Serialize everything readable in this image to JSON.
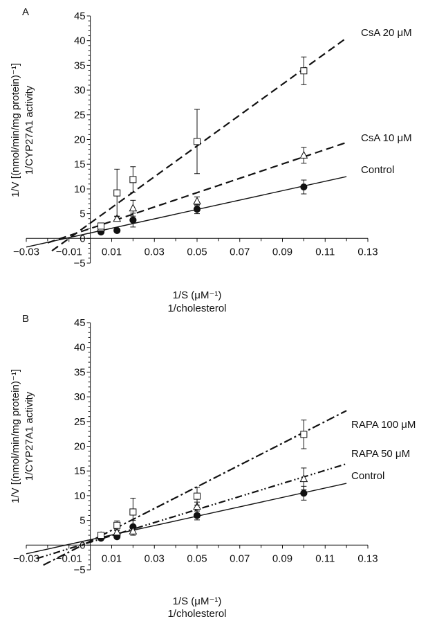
{
  "chart_data": [
    {
      "type": "line",
      "panel": "A",
      "xlabel": "1/S (μM⁻¹)",
      "xlabel2": "1/cholesterol",
      "ylabel": "1/V [(nmol/min/mg protein)⁻¹]",
      "ylabel2": "1/CYP27A1 activity",
      "xlim": [
        -0.03,
        0.13
      ],
      "ylim": [
        -5,
        45
      ],
      "xticks": [
        -0.03,
        -0.01,
        0.01,
        0.03,
        0.05,
        0.07,
        0.09,
        0.11,
        0.13
      ],
      "xtick_labels": [
        "−0.03",
        "−0.01",
        "0.01",
        "0.03",
        "0.05",
        "0.07",
        "0.09",
        "0.11",
        "0.13"
      ],
      "yticks": [
        -5,
        0,
        5,
        10,
        15,
        20,
        25,
        30,
        35,
        40,
        45
      ],
      "ytick_labels": [
        "−5",
        "0",
        "5",
        "10",
        "15",
        "20",
        "25",
        "30",
        "35",
        "40",
        "45"
      ],
      "grid": false,
      "series": [
        {
          "name": "Control",
          "color": "#111111",
          "line_style": "solid",
          "marker": "filled-circle",
          "x": [
            0.005,
            0.0125,
            0.02,
            0.05,
            0.1
          ],
          "y": [
            1.3,
            1.6,
            3.7,
            5.9,
            10.4
          ],
          "err": [
            0.3,
            0.3,
            1.4,
            0.9,
            1.4
          ],
          "fit": {
            "slope": 95,
            "intercept": 1.1,
            "x_range": [
              -0.03,
              0.12
            ]
          }
        },
        {
          "name": "CsA 10 μM",
          "color": "#111111",
          "line_style": "dashed",
          "marker": "open-triangle",
          "x": [
            0.005,
            0.0125,
            0.02,
            0.05,
            0.1
          ],
          "y": [
            2.1,
            4.0,
            6.1,
            7.5,
            16.8
          ],
          "err": [
            0.3,
            0.5,
            1.6,
            0.9,
            1.6
          ],
          "fit": {
            "slope": 145,
            "intercept": 2.0,
            "x_range": [
              -0.02,
              0.12
            ]
          }
        },
        {
          "name": "CsA 20 μM",
          "color": "#111111",
          "line_style": "dashed",
          "marker": "open-square",
          "x": [
            0.005,
            0.0125,
            0.02,
            0.05,
            0.1
          ],
          "y": [
            2.5,
            9.2,
            11.9,
            19.6,
            33.9
          ],
          "err": [
            0.4,
            4.8,
            2.6,
            6.5,
            2.8
          ],
          "fit": {
            "slope": 312,
            "intercept": 3.1,
            "x_range": [
              -0.018,
              0.12
            ]
          }
        }
      ]
    },
    {
      "type": "line",
      "panel": "B",
      "xlabel": "1/S (μM⁻¹)",
      "xlabel2": "1/cholesterol",
      "ylabel": "1/V [(nmol/min/mg protein)⁻¹]",
      "ylabel2": "1/CYP27A1 activity",
      "xlim": [
        -0.03,
        0.13
      ],
      "ylim": [
        -5,
        45
      ],
      "xticks": [
        -0.03,
        -0.01,
        0.01,
        0.03,
        0.05,
        0.07,
        0.09,
        0.11,
        0.13
      ],
      "xtick_labels": [
        "−0.03",
        "−0.01",
        "0.01",
        "0.03",
        "0.05",
        "0.07",
        "0.09",
        "0.11",
        "0.13"
      ],
      "yticks": [
        -5,
        0,
        5,
        10,
        15,
        20,
        25,
        30,
        35,
        40,
        45
      ],
      "ytick_labels": [
        "−5",
        "0",
        "5",
        "10",
        "15",
        "20",
        "25",
        "30",
        "35",
        "40",
        "45"
      ],
      "grid": false,
      "series": [
        {
          "name": "Control",
          "color": "#111111",
          "line_style": "solid",
          "marker": "filled-circle",
          "x": [
            0.005,
            0.0125,
            0.02,
            0.05,
            0.1
          ],
          "y": [
            1.4,
            1.7,
            3.7,
            6.0,
            10.5
          ],
          "err": [
            0.3,
            0.3,
            1.3,
            0.9,
            1.4
          ],
          "fit": {
            "slope": 95,
            "intercept": 1.1,
            "x_range": [
              -0.03,
              0.12
            ]
          }
        },
        {
          "name": "RAPA 50 μM",
          "color": "#111111",
          "line_style": "dash-dot-dot",
          "marker": "open-triangle",
          "x": [
            0.005,
            0.0125,
            0.02,
            0.05,
            0.1
          ],
          "y": [
            1.9,
            2.6,
            2.8,
            7.8,
            13.4
          ],
          "err": [
            0.3,
            0.3,
            0.8,
            0.9,
            2.2
          ],
          "fit": {
            "slope": 132,
            "intercept": 0.6,
            "x_range": [
              -0.025,
              0.12
            ]
          }
        },
        {
          "name": "RAPA 100 μM",
          "color": "#111111",
          "line_style": "dash-dot",
          "marker": "open-square",
          "x": [
            0.005,
            0.0125,
            0.02,
            0.05,
            0.1
          ],
          "y": [
            2.0,
            4.0,
            6.7,
            9.9,
            22.4
          ],
          "err": [
            0.3,
            0.9,
            2.8,
            1.8,
            2.9
          ],
          "fit": {
            "slope": 220,
            "intercept": 0.8,
            "x_range": [
              -0.022,
              0.12
            ]
          }
        }
      ]
    }
  ]
}
